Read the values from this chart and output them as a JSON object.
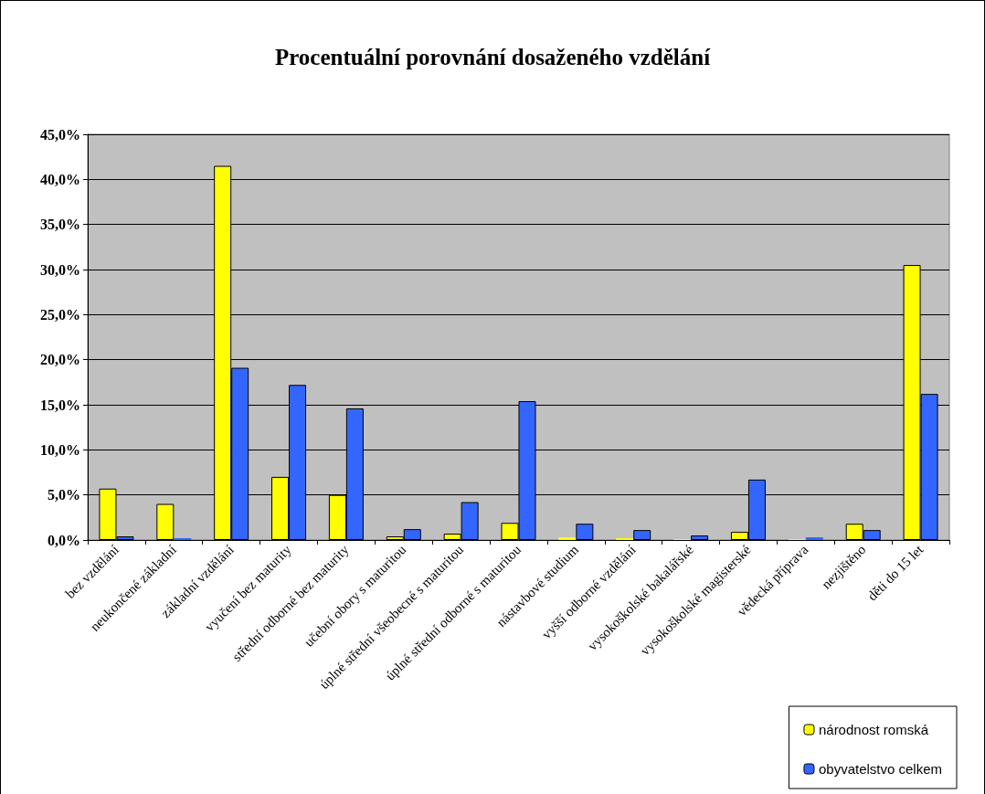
{
  "chart_data": {
    "type": "bar",
    "title": "Procentuální porovnání dosaženého vzdělání",
    "categories": [
      "bez vzdělání",
      "neukončené základní",
      "základní vzdělání",
      "vyučení bez maturity",
      "střední odborné bez maturity",
      "učební obory s maturitou",
      "úplné střední všeobecné s maturitou",
      "úplné střední odborné s maturitou",
      "nástavbové studium",
      "vyšší odborné vzdělání",
      "vysokoškolské bakalářské",
      "vysokoškolské magisterské",
      "vědecká příprava",
      "nezjištěno",
      "děti do 15 let"
    ],
    "series": [
      {
        "name": "národnost romská",
        "color": "#ffff00",
        "values": [
          5.7,
          4.0,
          41.5,
          7.0,
          5.0,
          0.4,
          0.7,
          1.9,
          0.3,
          0.2,
          0.1,
          0.9,
          0.1,
          1.8,
          30.5
        ]
      },
      {
        "name": "obyvatelstvo celkem",
        "color": "#3366ff",
        "values": [
          0.4,
          0.2,
          19.1,
          17.2,
          14.6,
          1.2,
          4.2,
          15.4,
          1.8,
          1.1,
          0.5,
          6.7,
          0.3,
          1.1,
          16.2
        ]
      }
    ],
    "ylim": [
      0,
      45
    ],
    "yticks": [
      {
        "value": 0,
        "label": "0,0%"
      },
      {
        "value": 5,
        "label": "5,0%"
      },
      {
        "value": 10,
        "label": "10,0%"
      },
      {
        "value": 15,
        "label": "15,0%"
      },
      {
        "value": 20,
        "label": "20,0%"
      },
      {
        "value": 25,
        "label": "25,0%"
      },
      {
        "value": 30,
        "label": "30,0%"
      },
      {
        "value": 35,
        "label": "35,0%"
      },
      {
        "value": 40,
        "label": "40,0%"
      },
      {
        "value": 45,
        "label": "45,0%"
      }
    ],
    "grid": "y",
    "legend": "bottom right"
  }
}
